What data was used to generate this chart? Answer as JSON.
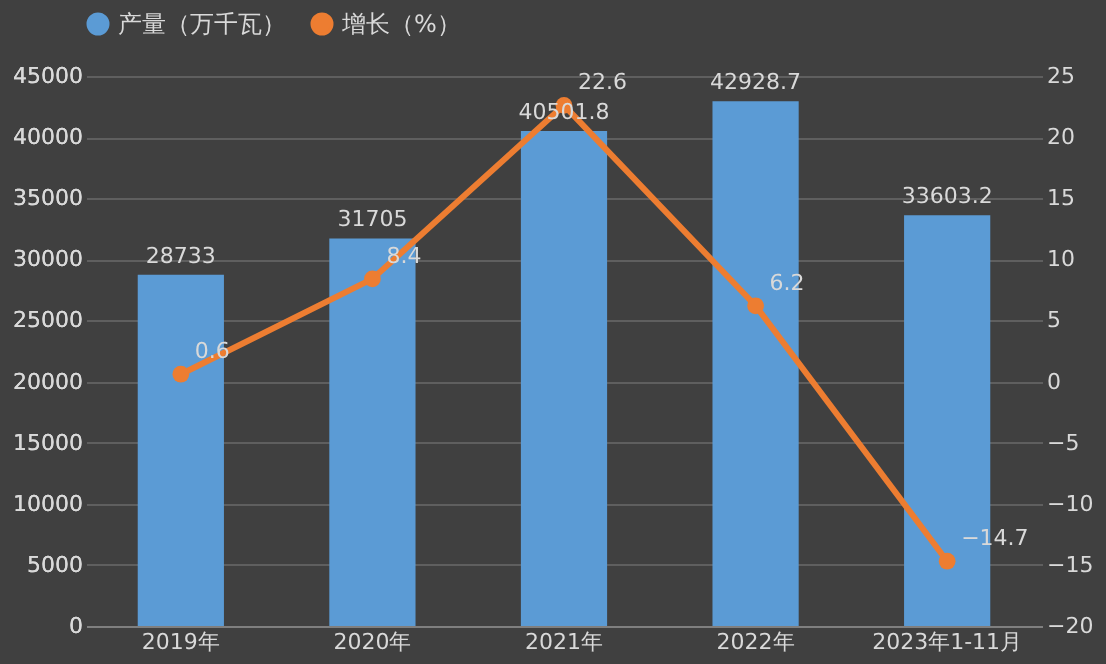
{
  "chart_data": {
    "type": "bar",
    "categories": [
      "2019年",
      "2020年",
      "2021年",
      "2022年",
      "2023年1-11月"
    ],
    "series": [
      {
        "name": "产量（万千瓦）",
        "color": "#5b9bd5",
        "values": [
          28733,
          31705,
          40501.8,
          42928.7,
          33603.2
        ]
      },
      {
        "name": "增长（%）",
        "type": "line",
        "axis": "y2",
        "color": "#ed7d31",
        "values": [
          0.6,
          8.4,
          22.6,
          6.2,
          -14.7
        ]
      }
    ],
    "ylim": [
      0,
      45000
    ],
    "yticks": [
      0,
      5000,
      10000,
      15000,
      20000,
      25000,
      30000,
      35000,
      40000,
      45000
    ],
    "y2lim": [
      -20,
      25
    ],
    "y2ticks": [
      -20,
      -15,
      -10,
      -5,
      0,
      5,
      10,
      15,
      20,
      25
    ],
    "data_labels": true,
    "grid": "y",
    "legend": "top",
    "marker": "circle"
  }
}
